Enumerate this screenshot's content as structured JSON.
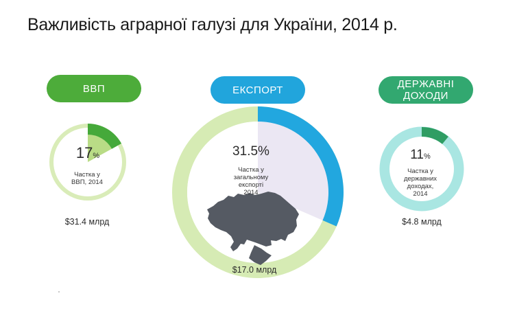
{
  "title": "Важливість аграрної галузі для України, 2014 р.",
  "colors": {
    "gdp": "#45a93a",
    "gdp_inner": "#b9dc86",
    "gdp_ring": "#d9ecb8",
    "export": "#22a7df",
    "export_share_bg": "#ebe7f3",
    "export_ring": "#d6ebb4",
    "state": "#2f9d63",
    "state_ring": "#a9e6e2",
    "map": "#555a63"
  },
  "chart_data": [
    {
      "type": "pie",
      "category": "ВВП",
      "value": 17,
      "unit": "%",
      "caption_lines": [
        "Частка у",
        "ВВП, 2014"
      ],
      "amount": "$31.4 млрд"
    },
    {
      "type": "pie",
      "category": "ЕКСПОРТ",
      "value": 31.5,
      "unit": "%",
      "caption_lines": [
        "Частка у",
        "загальному",
        "експорті",
        "2014"
      ],
      "amount": "$17.0 млрд",
      "icon": "ukraine-map-icon"
    },
    {
      "type": "pie",
      "category_lines": [
        "ДЕРЖАВНІ",
        "ДОХОДИ"
      ],
      "value": 11,
      "unit": "%",
      "caption_lines": [
        "Частка у",
        "державних",
        "доходах,",
        "2014"
      ],
      "amount": "$4.8 млрд"
    }
  ]
}
